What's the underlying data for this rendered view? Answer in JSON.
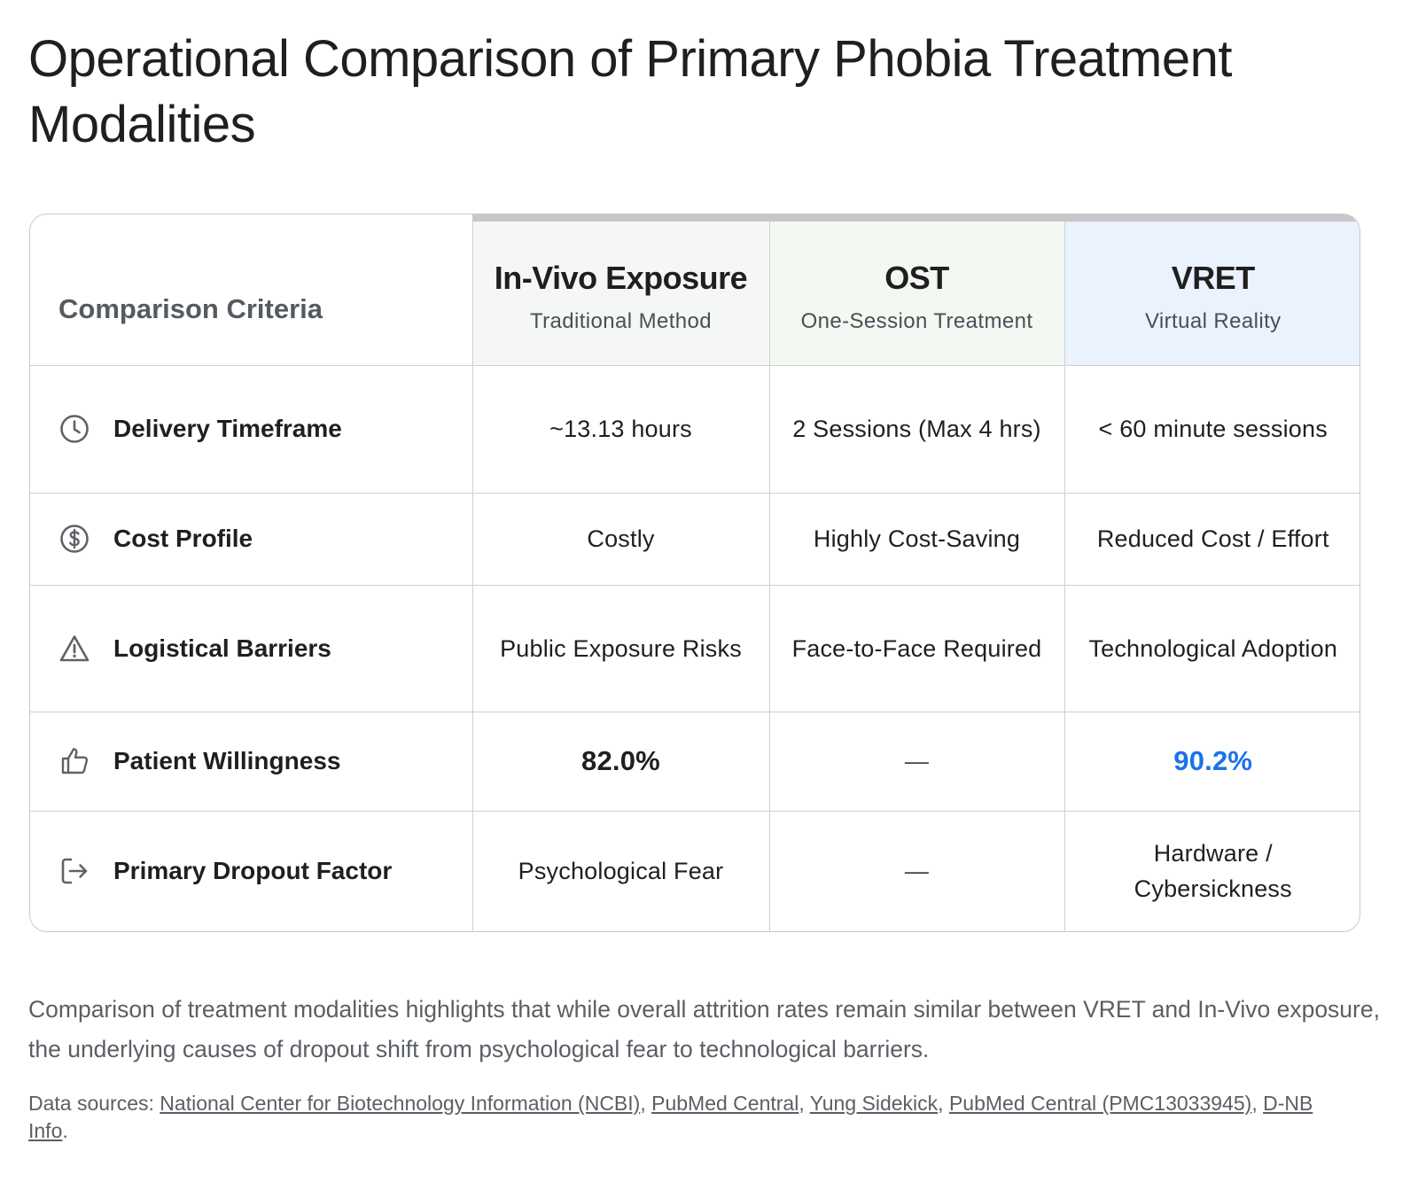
{
  "title": "Operational Comparison of Primary Phobia Treatment Modalities",
  "table": {
    "criteria_header": "Comparison Criteria",
    "modalities": [
      {
        "name": "In-Vivo Exposure",
        "subtitle": "Traditional Method",
        "bg": "#f5f6f6"
      },
      {
        "name": "OST",
        "subtitle": "One-Session Treatment",
        "bg": "#f3f8f3"
      },
      {
        "name": "VRET",
        "subtitle": "Virtual Reality",
        "bg": "#eaf2fd"
      }
    ],
    "rows": [
      {
        "criterion": "Delivery Timeframe",
        "icon": "clock-icon",
        "values": [
          "~13.13 hours",
          "2 Sessions (Max 4 hrs)",
          "< 60 minute sessions"
        ]
      },
      {
        "criterion": "Cost Profile",
        "icon": "dollar-circle-icon",
        "values": [
          "Costly",
          "Highly Cost-Saving",
          "Reduced Cost / Effort"
        ]
      },
      {
        "criterion": "Logistical Barriers",
        "icon": "warning-icon",
        "values": [
          "Public Exposure Risks",
          "Face-to-Face Required",
          "Technological Adoption"
        ]
      },
      {
        "criterion": "Patient Willingness",
        "icon": "thumbs-up-icon",
        "values": [
          "82.0%",
          "—",
          "90.2%"
        ]
      },
      {
        "criterion": "Primary Dropout Factor",
        "icon": "logout-icon",
        "values": [
          "Psychological Fear",
          "—",
          "Hardware / Cybersickness"
        ]
      }
    ],
    "highlight_color": "#1a73e8"
  },
  "summary": "Comparison of treatment modalities highlights that while overall attrition rates remain similar between VRET and In-Vivo exposure, the underlying causes of dropout shift from psychological fear to technological barriers.",
  "sources": {
    "prefix": "Data sources: ",
    "links": [
      "National Center for Biotechnology Information (NCBI)",
      "PubMed Central",
      "Yung Sidekick",
      "PubMed Central (PMC13033945)",
      "D-NB Info"
    ],
    "suffix": "."
  }
}
